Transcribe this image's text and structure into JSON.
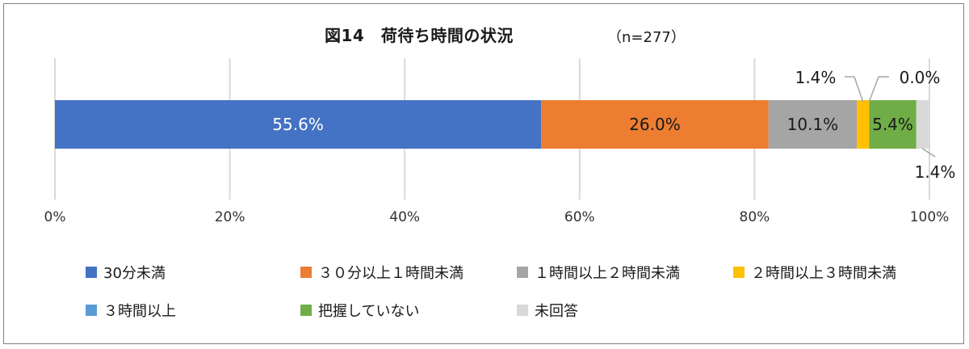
{
  "chart_data": {
    "type": "bar",
    "orientation": "horizontal",
    "stacked": "percent",
    "title": "図14　荷待ち時間の状況",
    "subtitle": "（n=277）",
    "xlim": [
      0,
      100
    ],
    "x_ticks": [
      "0%",
      "20%",
      "40%",
      "60%",
      "80%",
      "100%"
    ],
    "grid": true,
    "legend_position": "bottom",
    "series": [
      {
        "name": "30分未満",
        "value": 55.6,
        "label": "55.6%",
        "color": "#4472C4"
      },
      {
        "name": "３０分以上１時間未満",
        "value": 26.0,
        "label": "26.0%",
        "color": "#ED7D31"
      },
      {
        "name": "１時間以上２時間未満",
        "value": 10.1,
        "label": "10.1%",
        "color": "#A5A5A5"
      },
      {
        "name": "２時間以上３時間未満",
        "value": 1.4,
        "label": "1.4%",
        "color": "#FFC000"
      },
      {
        "name": "３時間以上",
        "value": 0.0,
        "label": "0.0%",
        "color": "#5B9BD5"
      },
      {
        "name": "把握していない",
        "value": 5.4,
        "label": "5.4%",
        "color": "#70AD47"
      },
      {
        "name": "未回答",
        "value": 1.4,
        "label": "1.4%",
        "color": "#D9D9D9"
      }
    ]
  }
}
